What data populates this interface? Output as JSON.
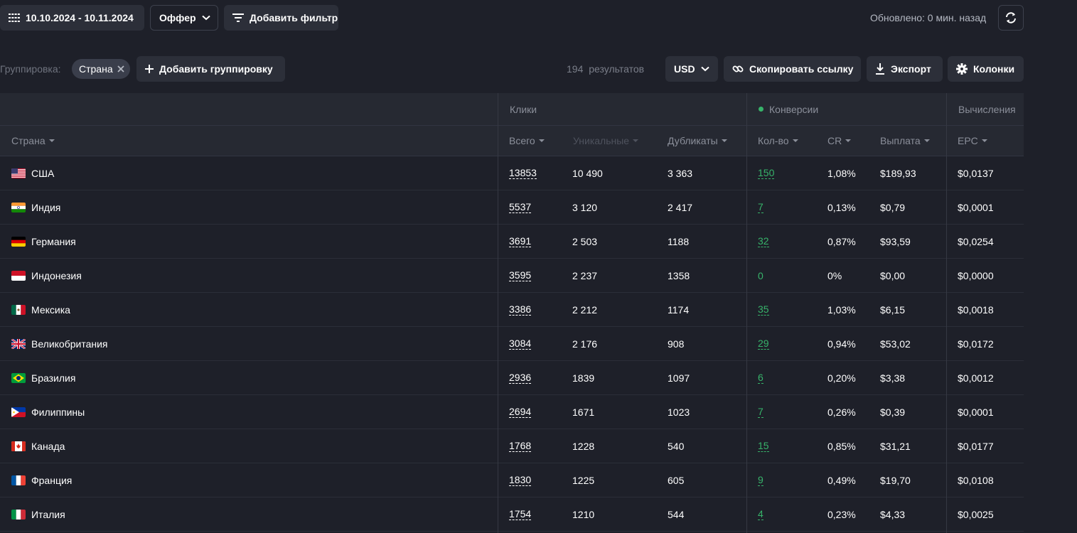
{
  "toolbar": {
    "date_range": "10.10.2024 - 10.11.2024",
    "offer_label": "Оффер",
    "filter_label": "Добавить фильтр",
    "updated_text": "Обновлено: 0 мин. назад"
  },
  "grouping": {
    "label": "Группировка:",
    "chip": "Страна",
    "add_label": "Добавить группировку",
    "results_count": "194",
    "results_label": "результатов",
    "currency": "USD",
    "copy_label": "Скопировать ссылку",
    "export_label": "Экспорт",
    "columns_label": "Колонки"
  },
  "table": {
    "groups": {
      "clicks": "Клики",
      "conversions": "Конверсии",
      "calc": "Вычисления"
    },
    "headers": {
      "country": "Страна",
      "total": "Всего",
      "unique": "Уникальные",
      "duplicates": "Дубликаты",
      "count": "Кол-во",
      "cr": "CR",
      "payout": "Выплата",
      "epc": "EPC"
    },
    "rows": [
      {
        "country": "США",
        "flag": "us",
        "total": "13853",
        "unique": "10 490",
        "dup": "3 363",
        "conv": "150",
        "cr": "1,08%",
        "payout": "$189,93",
        "epc": "$0,0137"
      },
      {
        "country": "Индия",
        "flag": "in",
        "total": "5537",
        "unique": "3 120",
        "dup": "2 417",
        "conv": "7",
        "cr": "0,13%",
        "payout": "$0,79",
        "epc": "$0,0001"
      },
      {
        "country": "Германия",
        "flag": "de",
        "total": "3691",
        "unique": "2 503",
        "dup": "1188",
        "conv": "32",
        "cr": "0,87%",
        "payout": "$93,59",
        "epc": "$0,0254"
      },
      {
        "country": "Индонезия",
        "flag": "id",
        "total": "3595",
        "unique": "2 237",
        "dup": "1358",
        "conv": "0",
        "cr": "0%",
        "payout": "$0,00",
        "epc": "$0,0000"
      },
      {
        "country": "Мексика",
        "flag": "mx",
        "total": "3386",
        "unique": "2 212",
        "dup": "1174",
        "conv": "35",
        "cr": "1,03%",
        "payout": "$6,15",
        "epc": "$0,0018"
      },
      {
        "country": "Великобритания",
        "flag": "gb",
        "total": "3084",
        "unique": "2 176",
        "dup": "908",
        "conv": "29",
        "cr": "0,94%",
        "payout": "$53,02",
        "epc": "$0,0172"
      },
      {
        "country": "Бразилия",
        "flag": "br",
        "total": "2936",
        "unique": "1839",
        "dup": "1097",
        "conv": "6",
        "cr": "0,20%",
        "payout": "$3,38",
        "epc": "$0,0012"
      },
      {
        "country": "Филиппины",
        "flag": "ph",
        "total": "2694",
        "unique": "1671",
        "dup": "1023",
        "conv": "7",
        "cr": "0,26%",
        "payout": "$0,39",
        "epc": "$0,0001"
      },
      {
        "country": "Канада",
        "flag": "ca",
        "total": "1768",
        "unique": "1228",
        "dup": "540",
        "conv": "15",
        "cr": "0,85%",
        "payout": "$31,21",
        "epc": "$0,0177"
      },
      {
        "country": "Франция",
        "flag": "fr",
        "total": "1830",
        "unique": "1225",
        "dup": "605",
        "conv": "9",
        "cr": "0,49%",
        "payout": "$19,70",
        "epc": "$0,0108"
      },
      {
        "country": "Италия",
        "flag": "it",
        "total": "1754",
        "unique": "1210",
        "dup": "544",
        "conv": "4",
        "cr": "0,23%",
        "payout": "$4,33",
        "epc": "$0,0025"
      }
    ]
  },
  "colors": {
    "background": "#1e2029",
    "button": "#2c2f39",
    "accent_green": "#37b36a"
  }
}
